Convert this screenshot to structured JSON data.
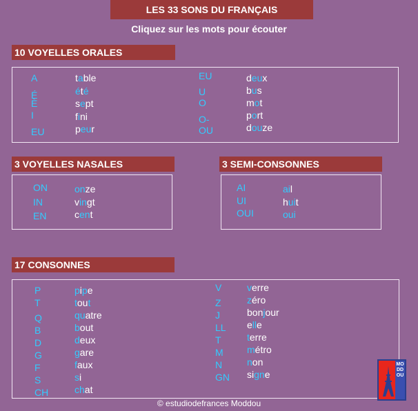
{
  "title": "LES 33 SONS DU FRANÇAIS",
  "subtitle": "Cliquez sur les mots pour écouter",
  "sections": {
    "voyelles_orales": {
      "header": "10 VOYELLES ORALES",
      "left": [
        {
          "code": "A",
          "parts": [
            {
              "t": "t",
              "h": false
            },
            {
              "t": "a",
              "h": true
            },
            {
              "t": "ble",
              "h": false
            }
          ]
        },
        {
          "code": "É",
          "parts": [
            {
              "t": "é",
              "h": true
            },
            {
              "t": "t",
              "h": false
            },
            {
              "t": "é",
              "h": true
            }
          ]
        },
        {
          "code": "È",
          "parts": [
            {
              "t": "s",
              "h": false
            },
            {
              "t": "e",
              "h": true
            },
            {
              "t": "pt",
              "h": false
            }
          ]
        },
        {
          "code": "I",
          "parts": [
            {
              "t": "f",
              "h": false
            },
            {
              "t": "i",
              "h": true
            },
            {
              "t": "ni",
              "h": false
            }
          ]
        },
        {
          "code": "EU",
          "parts": [
            {
              "t": "p",
              "h": false
            },
            {
              "t": "eu",
              "h": true
            },
            {
              "t": "r",
              "h": false
            }
          ]
        }
      ],
      "right": [
        {
          "code": "EU",
          "parts": [
            {
              "t": "d",
              "h": false
            },
            {
              "t": "eu",
              "h": true
            },
            {
              "t": "x",
              "h": false
            }
          ]
        },
        {
          "code": "U",
          "parts": [
            {
              "t": "b",
              "h": false
            },
            {
              "t": "u",
              "h": true
            },
            {
              "t": "s",
              "h": false
            }
          ]
        },
        {
          "code": "O",
          "parts": [
            {
              "t": "m",
              "h": false
            },
            {
              "t": "o",
              "h": true
            },
            {
              "t": "t",
              "h": false
            }
          ]
        },
        {
          "code": "O-",
          "parts": [
            {
              "t": "p",
              "h": false
            },
            {
              "t": "o",
              "h": true
            },
            {
              "t": "rt",
              "h": false
            }
          ]
        },
        {
          "code": "OU",
          "parts": [
            {
              "t": "d",
              "h": false
            },
            {
              "t": "ou",
              "h": true
            },
            {
              "t": "ze",
              "h": false
            }
          ]
        }
      ]
    },
    "voyelles_nasales": {
      "header": "3 VOYELLES NASALES",
      "items": [
        {
          "code": "ON",
          "parts": [
            {
              "t": "on",
              "h": true
            },
            {
              "t": "ze",
              "h": false
            }
          ]
        },
        {
          "code": "IN",
          "parts": [
            {
              "t": "v",
              "h": false
            },
            {
              "t": "in",
              "h": true
            },
            {
              "t": "gt",
              "h": false
            }
          ]
        },
        {
          "code": "EN",
          "parts": [
            {
              "t": "c",
              "h": false
            },
            {
              "t": "en",
              "h": true
            },
            {
              "t": "t",
              "h": false
            }
          ]
        }
      ]
    },
    "semi_consonnes": {
      "header": "3 SEMI-CONSONNES",
      "items": [
        {
          "code": "AI",
          "parts": [
            {
              "t": "ai",
              "h": true
            },
            {
              "t": "l",
              "h": false
            }
          ]
        },
        {
          "code": "UI",
          "parts": [
            {
              "t": "h",
              "h": false
            },
            {
              "t": "ui",
              "h": true
            },
            {
              "t": "t",
              "h": false
            }
          ]
        },
        {
          "code": "OUI",
          "parts": [
            {
              "t": "oui",
              "h": true
            }
          ]
        }
      ]
    },
    "consonnes": {
      "header": "17 CONSONNES",
      "left": [
        {
          "code": "P",
          "parts": [
            {
              "t": "p",
              "h": true
            },
            {
              "t": "i",
              "h": false
            },
            {
              "t": "p",
              "h": true
            },
            {
              "t": "e",
              "h": false
            }
          ]
        },
        {
          "code": "T",
          "parts": [
            {
              "t": "t",
              "h": true
            },
            {
              "t": "ou",
              "h": false
            },
            {
              "t": "t",
              "h": true
            }
          ]
        },
        {
          "code": "Q",
          "parts": [
            {
              "t": "qu",
              "h": true
            },
            {
              "t": "atre",
              "h": false
            }
          ]
        },
        {
          "code": "B",
          "parts": [
            {
              "t": "b",
              "h": true
            },
            {
              "t": "out",
              "h": false
            }
          ]
        },
        {
          "code": "D",
          "parts": [
            {
              "t": "d",
              "h": true
            },
            {
              "t": "eux",
              "h": false
            }
          ]
        },
        {
          "code": "G",
          "parts": [
            {
              "t": "g",
              "h": true
            },
            {
              "t": "are",
              "h": false
            }
          ]
        },
        {
          "code": "F",
          "parts": [
            {
              "t": "f",
              "h": true
            },
            {
              "t": "aux",
              "h": false
            }
          ]
        },
        {
          "code": "S",
          "parts": [
            {
              "t": "s",
              "h": true
            },
            {
              "t": "i",
              "h": false
            }
          ]
        },
        {
          "code": "CH",
          "parts": [
            {
              "t": "ch",
              "h": true
            },
            {
              "t": "at",
              "h": false
            }
          ]
        }
      ],
      "right": [
        {
          "code": "V",
          "parts": [
            {
              "t": "v",
              "h": true
            },
            {
              "t": "erre",
              "h": false
            }
          ]
        },
        {
          "code": "Z",
          "parts": [
            {
              "t": "z",
              "h": true
            },
            {
              "t": "éro",
              "h": false
            }
          ]
        },
        {
          "code": "J",
          "parts": [
            {
              "t": "bon",
              "h": false
            },
            {
              "t": "j",
              "h": true
            },
            {
              "t": "our",
              "h": false
            }
          ]
        },
        {
          "code": "LL",
          "parts": [
            {
              "t": "e",
              "h": false
            },
            {
              "t": "ll",
              "h": true
            },
            {
              "t": "e",
              "h": false
            }
          ]
        },
        {
          "code": "T",
          "parts": [
            {
              "t": "t",
              "h": true
            },
            {
              "t": "erre",
              "h": false
            }
          ]
        },
        {
          "code": "M",
          "parts": [
            {
              "t": "m",
              "h": true
            },
            {
              "t": "étro",
              "h": false
            }
          ]
        },
        {
          "code": "N",
          "parts": [
            {
              "t": "n",
              "h": true
            },
            {
              "t": "on",
              "h": false
            }
          ]
        },
        {
          "code": "GN",
          "parts": [
            {
              "t": "si",
              "h": false
            },
            {
              "t": "gn",
              "h": true
            },
            {
              "t": "e",
              "h": false
            }
          ]
        }
      ]
    }
  },
  "footer": "© estudiodefrances Moddou",
  "logo": {
    "vertical_text": "MODDOU",
    "icon": "eiffel-tower-icon"
  },
  "colors": {
    "background": "#926595",
    "header": "#9b3a3a",
    "accent": "#33ccff",
    "text": "#ffffff"
  }
}
